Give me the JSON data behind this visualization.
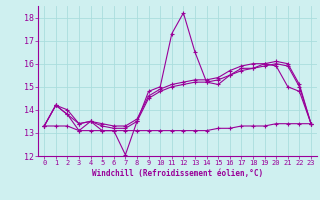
{
  "xlabel": "Windchill (Refroidissement éolien,°C)",
  "background_color": "#cff0f0",
  "grid_color": "#aadddd",
  "line_color": "#990099",
  "xlim": [
    -0.5,
    23.5
  ],
  "ylim": [
    12,
    18.5
  ],
  "yticks": [
    12,
    13,
    14,
    15,
    16,
    17,
    18
  ],
  "xticks": [
    0,
    1,
    2,
    3,
    4,
    5,
    6,
    7,
    8,
    9,
    10,
    11,
    12,
    13,
    14,
    15,
    16,
    17,
    18,
    19,
    20,
    21,
    22,
    23
  ],
  "line1_x": [
    0,
    1,
    2,
    3,
    4,
    5,
    6,
    7,
    8,
    9,
    10,
    11,
    12,
    13,
    14,
    15,
    16,
    17,
    18,
    19,
    20,
    21,
    22,
    23
  ],
  "line1_y": [
    13.3,
    14.2,
    13.8,
    13.1,
    13.5,
    13.1,
    13.1,
    12.05,
    13.5,
    14.8,
    15.0,
    17.3,
    18.2,
    16.5,
    15.2,
    15.1,
    15.5,
    15.8,
    15.8,
    16.0,
    15.9,
    15.0,
    14.8,
    13.4
  ],
  "line2_x": [
    0,
    1,
    2,
    3,
    4,
    5,
    6,
    7,
    8,
    9,
    10,
    11,
    12,
    13,
    14,
    15,
    16,
    17,
    18,
    19,
    20,
    21,
    22,
    23
  ],
  "line2_y": [
    13.3,
    14.2,
    13.8,
    13.4,
    13.5,
    13.3,
    13.2,
    13.2,
    13.5,
    14.5,
    14.8,
    15.0,
    15.1,
    15.2,
    15.2,
    15.3,
    15.5,
    15.7,
    15.8,
    15.9,
    16.0,
    15.9,
    15.0,
    13.4
  ],
  "line3_x": [
    0,
    1,
    2,
    3,
    4,
    5,
    6,
    7,
    8,
    9,
    10,
    11,
    12,
    13,
    14,
    15,
    16,
    17,
    18,
    19,
    20,
    21,
    22,
    23
  ],
  "line3_y": [
    13.3,
    14.2,
    14.0,
    13.4,
    13.5,
    13.4,
    13.3,
    13.3,
    13.6,
    14.6,
    14.9,
    15.1,
    15.2,
    15.3,
    15.3,
    15.4,
    15.7,
    15.9,
    16.0,
    16.0,
    16.1,
    16.0,
    15.1,
    13.4
  ],
  "line4_x": [
    0,
    1,
    2,
    3,
    4,
    5,
    6,
    7,
    8,
    9,
    10,
    11,
    12,
    13,
    14,
    15,
    16,
    17,
    18,
    19,
    20,
    21,
    22,
    23
  ],
  "line4_y": [
    13.3,
    13.3,
    13.3,
    13.1,
    13.1,
    13.1,
    13.1,
    13.1,
    13.1,
    13.1,
    13.1,
    13.1,
    13.1,
    13.1,
    13.1,
    13.2,
    13.2,
    13.3,
    13.3,
    13.3,
    13.4,
    13.4,
    13.4,
    13.4
  ]
}
